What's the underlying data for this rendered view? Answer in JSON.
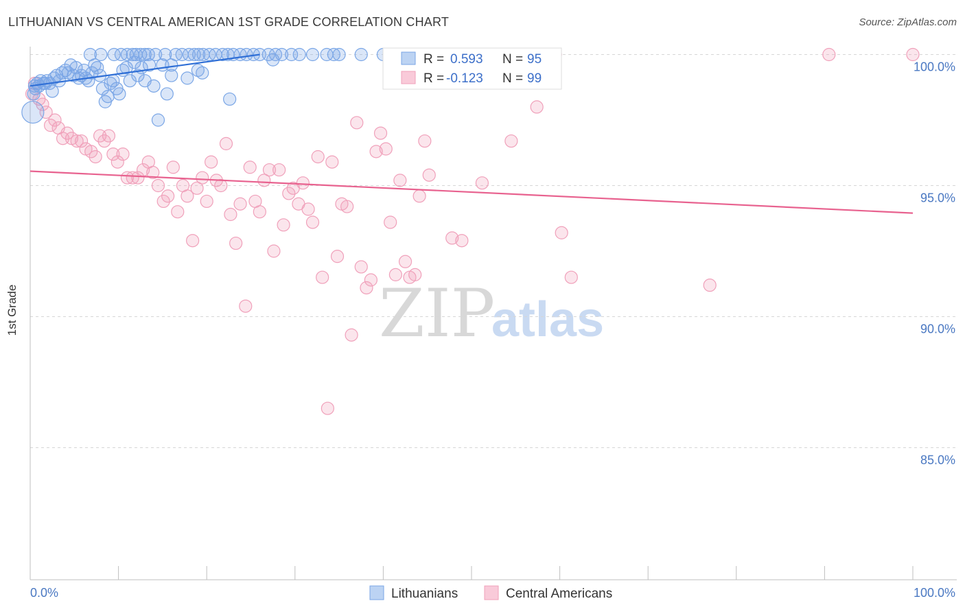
{
  "header": {
    "title": "LITHUANIAN VS CENTRAL AMERICAN 1ST GRADE CORRELATION CHART",
    "source": "Source: ZipAtlas.com"
  },
  "watermark": {
    "zip": "ZIP",
    "atlas": "atlas"
  },
  "legend_box": {
    "rows": [
      {
        "r_label": "R =",
        "r_value": "0.593",
        "n_label": "N =",
        "n_value": "95"
      },
      {
        "r_label": "R =",
        "r_value": "-0.123",
        "n_label": "N =",
        "n_value": "99"
      }
    ]
  },
  "chart_data": {
    "type": "scatter",
    "title": "LITHUANIAN VS CENTRAL AMERICAN 1ST GRADE CORRELATION CHART",
    "xlabel": "",
    "ylabel": "1st Grade",
    "xlim": [
      0,
      100
    ],
    "ylim": [
      80.5,
      100.7
    ],
    "x_tick_labels": [
      "0.0%",
      "100.0%"
    ],
    "y_ticks": [
      100,
      95,
      90,
      85
    ],
    "y_tick_labels": [
      "100.0%",
      "95.0%",
      "90.0%",
      "85.0%"
    ],
    "grid": true,
    "legend_position": "bottom",
    "series": [
      {
        "name": "Lithuanians",
        "color": "#7aa6e6",
        "line_color": "#2f6fd6",
        "r": 0.593,
        "n": 95,
        "trend": [
          [
            0,
            98.8
          ],
          [
            26,
            100.0
          ]
        ],
        "points": [
          [
            0.3,
            97.8
          ],
          [
            0.4,
            98.5
          ],
          [
            0.5,
            98.8
          ],
          [
            0.6,
            98.7
          ],
          [
            0.8,
            98.9
          ],
          [
            1.0,
            98.8
          ],
          [
            1.2,
            99.0
          ],
          [
            1.5,
            98.9
          ],
          [
            1.7,
            98.9
          ],
          [
            1.9,
            99.0
          ],
          [
            2.2,
            98.9
          ],
          [
            2.5,
            98.6
          ],
          [
            2.7,
            99.1
          ],
          [
            3.0,
            99.2
          ],
          [
            3.3,
            99.0
          ],
          [
            3.6,
            99.3
          ],
          [
            4.0,
            99.4
          ],
          [
            4.3,
            99.3
          ],
          [
            4.6,
            99.6
          ],
          [
            4.9,
            99.2
          ],
          [
            5.2,
            99.5
          ],
          [
            5.5,
            99.1
          ],
          [
            5.8,
            99.2
          ],
          [
            6.1,
            99.4
          ],
          [
            6.3,
            99.1
          ],
          [
            6.6,
            99.0
          ],
          [
            7.0,
            99.3
          ],
          [
            7.3,
            99.6
          ],
          [
            7.6,
            99.5
          ],
          [
            7.9,
            99.2
          ],
          [
            8.2,
            98.7
          ],
          [
            8.5,
            98.2
          ],
          [
            8.8,
            98.4
          ],
          [
            9.1,
            98.9
          ],
          [
            9.4,
            99.0
          ],
          [
            9.8,
            98.7
          ],
          [
            10.1,
            98.5
          ],
          [
            10.5,
            99.4
          ],
          [
            10.9,
            99.5
          ],
          [
            11.3,
            99.0
          ],
          [
            11.8,
            99.7
          ],
          [
            12.2,
            99.2
          ],
          [
            12.6,
            99.5
          ],
          [
            13.0,
            99.0
          ],
          [
            13.5,
            99.6
          ],
          [
            14.0,
            98.8
          ],
          [
            14.5,
            97.5
          ],
          [
            15.0,
            99.6
          ],
          [
            15.5,
            98.5
          ],
          [
            16.0,
            99.2
          ],
          [
            6.8,
            100.0
          ],
          [
            8.0,
            100.0
          ],
          [
            9.5,
            100.0
          ],
          [
            10.3,
            100.0
          ],
          [
            11.0,
            100.0
          ],
          [
            11.6,
            100.0
          ],
          [
            12.0,
            100.0
          ],
          [
            12.5,
            100.0
          ],
          [
            13.0,
            100.0
          ],
          [
            13.4,
            100.0
          ],
          [
            14.2,
            100.0
          ],
          [
            15.3,
            100.0
          ],
          [
            16.5,
            100.0
          ],
          [
            17.2,
            100.0
          ],
          [
            18.0,
            100.0
          ],
          [
            18.6,
            100.0
          ],
          [
            19.1,
            100.0
          ],
          [
            19.6,
            100.0
          ],
          [
            20.3,
            100.0
          ],
          [
            21.0,
            100.0
          ],
          [
            21.8,
            100.0
          ],
          [
            22.4,
            100.0
          ],
          [
            23.0,
            100.0
          ],
          [
            23.8,
            100.0
          ],
          [
            24.5,
            100.0
          ],
          [
            25.3,
            100.0
          ],
          [
            26.0,
            100.0
          ],
          [
            27.0,
            100.0
          ],
          [
            27.8,
            100.0
          ],
          [
            28.5,
            100.0
          ],
          [
            29.6,
            100.0
          ],
          [
            30.5,
            100.0
          ],
          [
            32.0,
            100.0
          ],
          [
            33.6,
            100.0
          ],
          [
            34.4,
            100.0
          ],
          [
            35.0,
            100.0
          ],
          [
            37.5,
            100.0
          ],
          [
            40.0,
            100.0
          ],
          [
            41.5,
            100.0
          ],
          [
            27.5,
            99.8
          ],
          [
            19.5,
            99.3
          ],
          [
            22.6,
            98.3
          ],
          [
            16.0,
            99.6
          ],
          [
            17.8,
            99.1
          ],
          [
            19.0,
            99.4
          ]
        ]
      },
      {
        "name": "Central Americans",
        "color": "#f0a0ba",
        "line_color": "#e8628f",
        "r": -0.123,
        "n": 99,
        "trend": [
          [
            0,
            95.55
          ],
          [
            100,
            93.95
          ]
        ],
        "points": [
          [
            0.2,
            98.5
          ],
          [
            0.5,
            98.9
          ],
          [
            1.0,
            98.3
          ],
          [
            1.4,
            98.1
          ],
          [
            1.8,
            97.8
          ],
          [
            2.3,
            97.3
          ],
          [
            2.8,
            97.5
          ],
          [
            3.2,
            97.2
          ],
          [
            3.7,
            96.8
          ],
          [
            4.2,
            97.0
          ],
          [
            4.7,
            96.8
          ],
          [
            5.3,
            96.7
          ],
          [
            5.8,
            96.7
          ],
          [
            6.3,
            96.4
          ],
          [
            6.9,
            96.3
          ],
          [
            7.4,
            96.1
          ],
          [
            7.9,
            96.9
          ],
          [
            8.4,
            96.7
          ],
          [
            8.9,
            96.9
          ],
          [
            9.4,
            96.2
          ],
          [
            9.9,
            95.9
          ],
          [
            10.5,
            96.2
          ],
          [
            11.0,
            95.3
          ],
          [
            11.6,
            95.3
          ],
          [
            12.2,
            95.3
          ],
          [
            12.8,
            95.6
          ],
          [
            13.4,
            95.9
          ],
          [
            13.9,
            95.5
          ],
          [
            14.5,
            95.0
          ],
          [
            15.1,
            94.4
          ],
          [
            15.6,
            94.6
          ],
          [
            16.2,
            95.7
          ],
          [
            16.7,
            94.0
          ],
          [
            17.3,
            95.0
          ],
          [
            17.8,
            94.6
          ],
          [
            18.4,
            92.9
          ],
          [
            18.9,
            94.9
          ],
          [
            19.5,
            95.3
          ],
          [
            20.0,
            94.4
          ],
          [
            20.5,
            95.9
          ],
          [
            21.1,
            95.2
          ],
          [
            21.6,
            95.0
          ],
          [
            22.2,
            96.6
          ],
          [
            22.7,
            93.9
          ],
          [
            23.3,
            92.8
          ],
          [
            23.8,
            94.3
          ],
          [
            24.4,
            90.4
          ],
          [
            24.9,
            95.7
          ],
          [
            25.5,
            94.4
          ],
          [
            26.0,
            94.0
          ],
          [
            26.5,
            95.2
          ],
          [
            27.1,
            95.6
          ],
          [
            27.6,
            92.5
          ],
          [
            28.2,
            95.6
          ],
          [
            28.7,
            93.5
          ],
          [
            29.3,
            94.7
          ],
          [
            29.8,
            94.9
          ],
          [
            30.4,
            94.3
          ],
          [
            30.9,
            95.1
          ],
          [
            31.5,
            94.1
          ],
          [
            32.0,
            93.6
          ],
          [
            32.6,
            96.1
          ],
          [
            33.1,
            91.5
          ],
          [
            33.7,
            86.5
          ],
          [
            34.2,
            95.9
          ],
          [
            34.8,
            92.3
          ],
          [
            35.3,
            94.3
          ],
          [
            35.9,
            94.2
          ],
          [
            36.4,
            89.3
          ],
          [
            37.0,
            97.4
          ],
          [
            37.5,
            91.9
          ],
          [
            38.1,
            91.1
          ],
          [
            38.6,
            91.4
          ],
          [
            39.2,
            96.3
          ],
          [
            39.7,
            97.0
          ],
          [
            40.3,
            96.4
          ],
          [
            40.8,
            93.6
          ],
          [
            41.4,
            91.6
          ],
          [
            41.9,
            95.2
          ],
          [
            42.5,
            92.1
          ],
          [
            43.0,
            91.5
          ],
          [
            43.6,
            91.6
          ],
          [
            44.1,
            94.6
          ],
          [
            44.7,
            96.7
          ],
          [
            45.2,
            95.4
          ],
          [
            47.8,
            93.0
          ],
          [
            48.9,
            92.9
          ],
          [
            49.4,
            99.2
          ],
          [
            51.2,
            95.1
          ],
          [
            52.4,
            100.0
          ],
          [
            52.8,
            99.4
          ],
          [
            54.5,
            96.7
          ],
          [
            57.4,
            98.0
          ],
          [
            60.2,
            93.2
          ],
          [
            61.3,
            91.5
          ],
          [
            77.0,
            91.2
          ],
          [
            90.5,
            100.0
          ],
          [
            100.0,
            100.0
          ],
          [
            59.5,
            100.0
          ]
        ]
      }
    ]
  }
}
